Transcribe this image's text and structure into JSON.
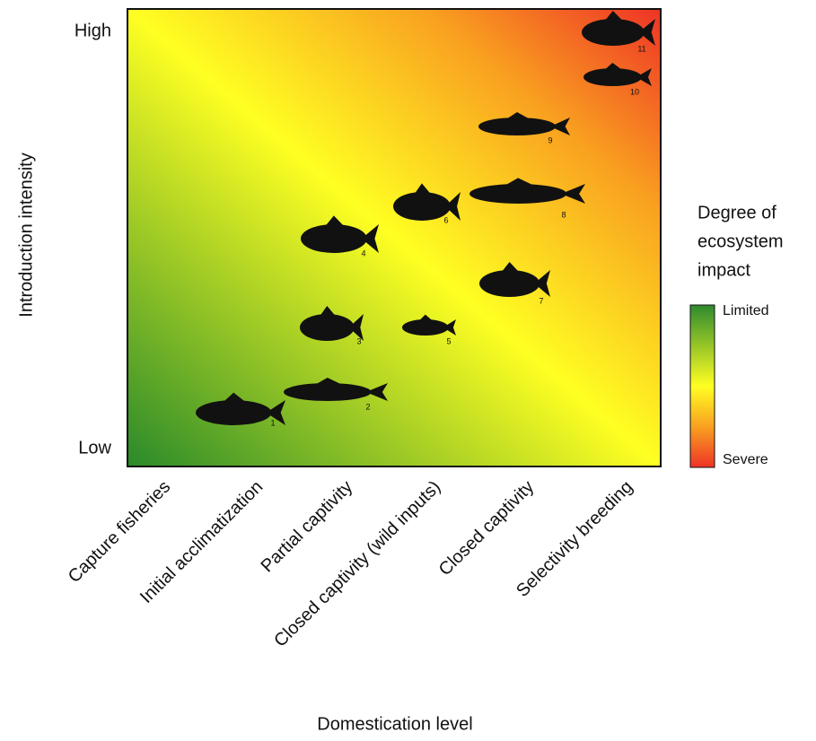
{
  "y_axis": {
    "title": "Introduction intensity",
    "labels": [
      "High",
      "Low"
    ]
  },
  "x_axis": {
    "title": "Domestication level",
    "labels": [
      "Capture fisheries",
      "Initial acclimatization",
      "Partial captivity",
      "Closed captivity (wild inputs)",
      "Closed captivity",
      "Selectivity breeding"
    ]
  },
  "legend": {
    "title_lines": [
      "Degree of",
      "ecosystem",
      "impact"
    ],
    "labels": [
      "Limited",
      "Severe"
    ]
  },
  "fish": [
    {
      "label": "1"
    },
    {
      "label": "2"
    },
    {
      "label": "3"
    },
    {
      "label": "4"
    },
    {
      "label": "5"
    },
    {
      "label": "6"
    },
    {
      "label": "7"
    },
    {
      "label": "8"
    },
    {
      "label": "9"
    },
    {
      "label": "10"
    },
    {
      "label": "11"
    }
  ]
}
